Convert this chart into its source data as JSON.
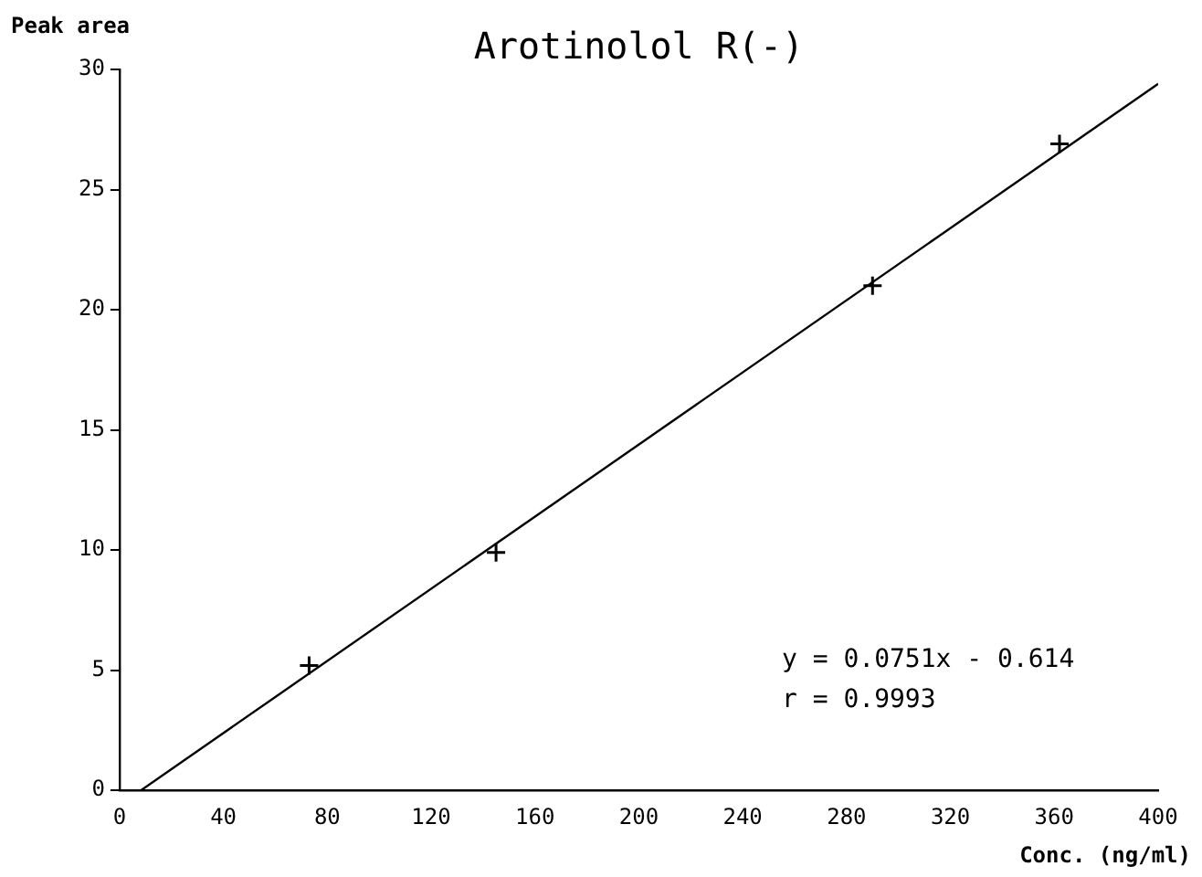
{
  "chart_data": {
    "type": "scatter",
    "title": "Arotinolol R(-)",
    "xlabel": "Conc. (ng/ml)",
    "ylabel": "Peak area",
    "xlim": [
      0,
      400
    ],
    "xticks": [
      0,
      40,
      80,
      120,
      160,
      200,
      240,
      280,
      320,
      360,
      400
    ],
    "ylim": [
      0,
      30
    ],
    "yticks": [
      0,
      5,
      10,
      15,
      20,
      25,
      30
    ],
    "grid": false,
    "legend": false,
    "series": [
      {
        "type": "scatter",
        "color": "#000000",
        "marker": "cross",
        "x": [
          73,
          145,
          290,
          362
        ],
        "values": [
          5.2,
          9.9,
          21,
          26.9
        ]
      },
      {
        "type": "line",
        "color": "#000000",
        "marker": "none",
        "line_style": "solid",
        "x": [
          8.2,
          400
        ],
        "values": [
          0,
          29.4
        ]
      }
    ],
    "annotations": [
      "y = 0.0751x - 0.614",
      "r = 0.9993"
    ]
  }
}
